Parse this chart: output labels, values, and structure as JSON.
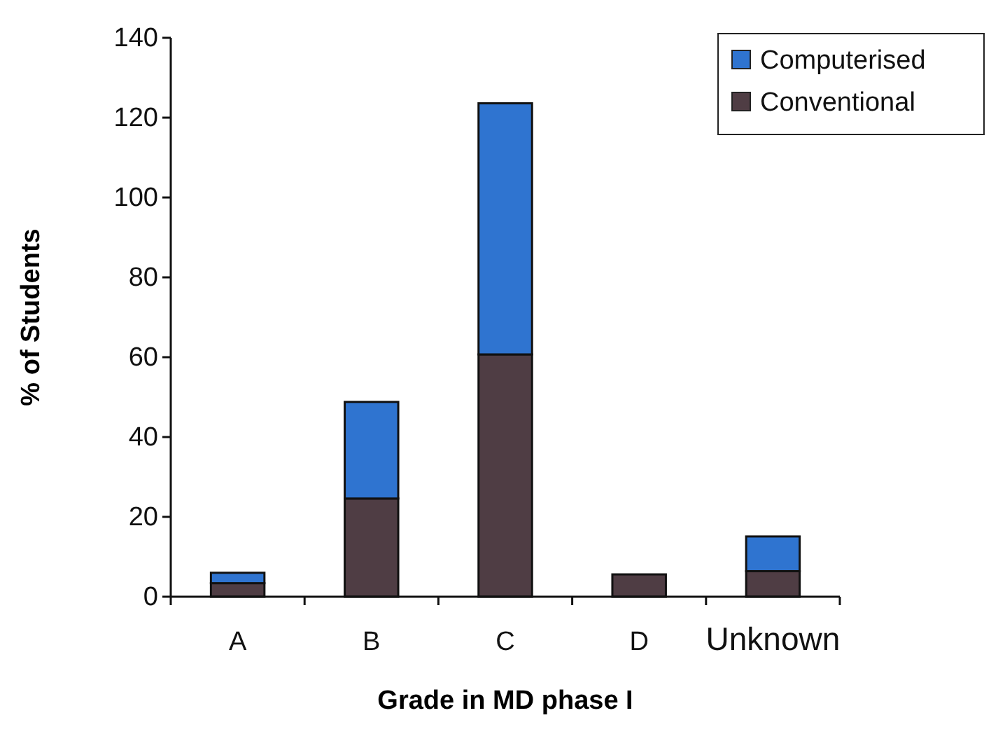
{
  "chart_data": {
    "type": "bar",
    "stacked": true,
    "xlabel": "Grade in MD phase I",
    "ylabel": "% of Students",
    "categories": [
      "A",
      "B",
      "C",
      "D",
      "Unknown"
    ],
    "series": [
      {
        "name": "Conventional",
        "color": "#4f3d44",
        "values": [
          3.4,
          24.6,
          60.7,
          5.6,
          6.4
        ]
      },
      {
        "name": "Computerised",
        "color": "#2f74d0",
        "values": [
          2.6,
          24.2,
          62.9,
          0,
          8.7
        ]
      }
    ],
    "ylim": [
      0,
      140
    ],
    "yticks": [
      0,
      20,
      40,
      60,
      80,
      100,
      120,
      140
    ],
    "legend": "top right"
  }
}
